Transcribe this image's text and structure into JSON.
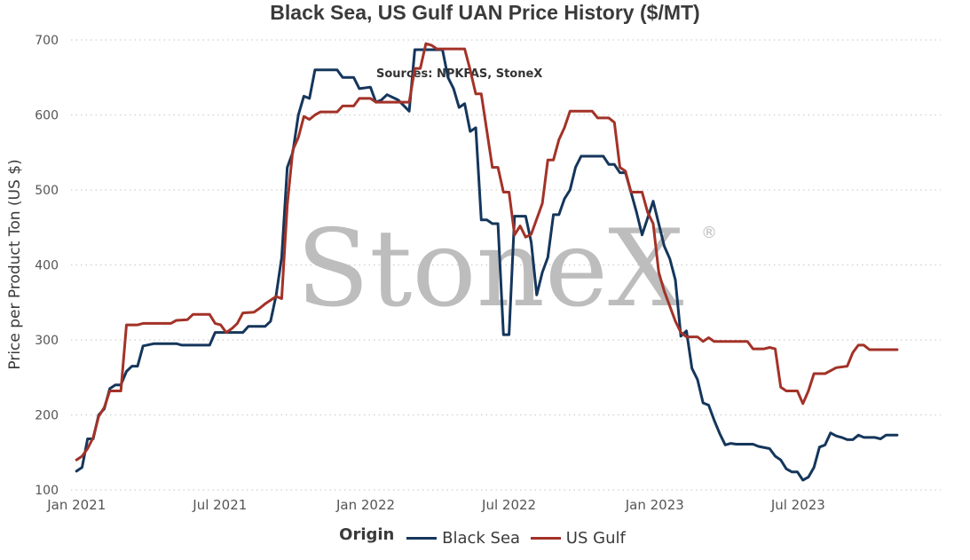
{
  "chart_data": {
    "type": "line",
    "title": "Black Sea, US Gulf UAN Price History ($/MT)",
    "ylabel": "Price per Product Ton (US $)",
    "xlabel": "",
    "ylim": [
      100,
      700
    ],
    "yticks": [
      100,
      200,
      300,
      400,
      500,
      600,
      700
    ],
    "xlim": [
      "2020-12-25",
      "2023-12-28"
    ],
    "xticks": [
      {
        "label": "Jan 2021",
        "date": "2021-01-01"
      },
      {
        "label": "Jul 2021",
        "date": "2021-07-01"
      },
      {
        "label": "Jan 2022",
        "date": "2022-01-01"
      },
      {
        "label": "Jul 2022",
        "date": "2022-07-01"
      },
      {
        "label": "Jan 2023",
        "date": "2023-01-01"
      },
      {
        "label": "Jul 2023",
        "date": "2023-07-01"
      }
    ],
    "grid": "horizontal-dotted",
    "annotation": "Sources: NPKFAS, StoneX",
    "watermark": "StoneX",
    "legend": {
      "title": "Origin",
      "placement": "bottom"
    },
    "series": [
      {
        "name": "Black Sea",
        "color": "#15365b",
        "points": [
          [
            "2021-01-01",
            125
          ],
          [
            "2021-01-08",
            130
          ],
          [
            "2021-01-15",
            168
          ],
          [
            "2021-01-22",
            168
          ],
          [
            "2021-01-29",
            200
          ],
          [
            "2021-02-05",
            208
          ],
          [
            "2021-02-12",
            235
          ],
          [
            "2021-02-19",
            240
          ],
          [
            "2021-02-26",
            240
          ],
          [
            "2021-03-05",
            258
          ],
          [
            "2021-03-12",
            265
          ],
          [
            "2021-03-19",
            265
          ],
          [
            "2021-03-26",
            292
          ],
          [
            "2021-04-09",
            295
          ],
          [
            "2021-05-07",
            295
          ],
          [
            "2021-05-14",
            293
          ],
          [
            "2021-06-18",
            293
          ],
          [
            "2021-06-25",
            310
          ],
          [
            "2021-07-30",
            310
          ],
          [
            "2021-08-06",
            318
          ],
          [
            "2021-08-27",
            318
          ],
          [
            "2021-09-03",
            325
          ],
          [
            "2021-09-10",
            360
          ],
          [
            "2021-09-17",
            410
          ],
          [
            "2021-09-24",
            530
          ],
          [
            "2021-10-01",
            550
          ],
          [
            "2021-10-08",
            600
          ],
          [
            "2021-10-15",
            625
          ],
          [
            "2021-10-22",
            622
          ],
          [
            "2021-10-29",
            660
          ],
          [
            "2021-11-26",
            660
          ],
          [
            "2021-12-03",
            650
          ],
          [
            "2021-12-17",
            650
          ],
          [
            "2021-12-24",
            635
          ],
          [
            "2022-01-07",
            637
          ],
          [
            "2022-01-14",
            617
          ],
          [
            "2022-01-21",
            620
          ],
          [
            "2022-01-28",
            627
          ],
          [
            "2022-02-11",
            620
          ],
          [
            "2022-02-25",
            605
          ],
          [
            "2022-03-04",
            687
          ],
          [
            "2022-04-08",
            687
          ],
          [
            "2022-04-15",
            650
          ],
          [
            "2022-04-22",
            635
          ],
          [
            "2022-04-29",
            610
          ],
          [
            "2022-05-06",
            615
          ],
          [
            "2022-05-13",
            578
          ],
          [
            "2022-05-20",
            583
          ],
          [
            "2022-05-27",
            460
          ],
          [
            "2022-06-03",
            460
          ],
          [
            "2022-06-10",
            455
          ],
          [
            "2022-06-17",
            455
          ],
          [
            "2022-06-24",
            307
          ],
          [
            "2022-07-01",
            307
          ],
          [
            "2022-07-08",
            465
          ],
          [
            "2022-07-22",
            465
          ],
          [
            "2022-07-29",
            430
          ],
          [
            "2022-08-05",
            360
          ],
          [
            "2022-08-12",
            390
          ],
          [
            "2022-08-19",
            410
          ],
          [
            "2022-08-26",
            467
          ],
          [
            "2022-09-02",
            467
          ],
          [
            "2022-09-09",
            488
          ],
          [
            "2022-09-16",
            500
          ],
          [
            "2022-09-23",
            530
          ],
          [
            "2022-09-30",
            545
          ],
          [
            "2022-10-28",
            545
          ],
          [
            "2022-11-04",
            534
          ],
          [
            "2022-11-11",
            534
          ],
          [
            "2022-11-18",
            523
          ],
          [
            "2022-11-25",
            523
          ],
          [
            "2022-12-02",
            497
          ],
          [
            "2022-12-09",
            470
          ],
          [
            "2022-12-16",
            440
          ],
          [
            "2022-12-30",
            485
          ],
          [
            "2023-01-13",
            425
          ],
          [
            "2023-01-20",
            408
          ],
          [
            "2023-01-27",
            380
          ],
          [
            "2023-02-03",
            305
          ],
          [
            "2023-02-10",
            312
          ],
          [
            "2023-02-17",
            262
          ],
          [
            "2023-02-24",
            247
          ],
          [
            "2023-03-03",
            216
          ],
          [
            "2023-03-10",
            213
          ],
          [
            "2023-03-17",
            193
          ],
          [
            "2023-03-24",
            175
          ],
          [
            "2023-03-31",
            160
          ],
          [
            "2023-04-07",
            162
          ],
          [
            "2023-04-14",
            161
          ],
          [
            "2023-05-05",
            161
          ],
          [
            "2023-05-12",
            158
          ],
          [
            "2023-05-26",
            155
          ],
          [
            "2023-06-02",
            145
          ],
          [
            "2023-06-09",
            140
          ],
          [
            "2023-06-16",
            128
          ],
          [
            "2023-06-23",
            124
          ],
          [
            "2023-06-30",
            124
          ],
          [
            "2023-07-07",
            113
          ],
          [
            "2023-07-14",
            117
          ],
          [
            "2023-07-21",
            130
          ],
          [
            "2023-07-28",
            157
          ],
          [
            "2023-08-04",
            160
          ],
          [
            "2023-08-11",
            176
          ],
          [
            "2023-08-18",
            172
          ],
          [
            "2023-08-25",
            170
          ],
          [
            "2023-09-01",
            167
          ],
          [
            "2023-09-08",
            167
          ],
          [
            "2023-09-15",
            173
          ],
          [
            "2023-09-22",
            170
          ],
          [
            "2023-10-06",
            170
          ],
          [
            "2023-10-13",
            168
          ],
          [
            "2023-10-20",
            173
          ],
          [
            "2023-11-03",
            173
          ]
        ]
      },
      {
        "name": "US Gulf",
        "color": "#a33228",
        "points": [
          [
            "2021-01-01",
            140
          ],
          [
            "2021-01-08",
            145
          ],
          [
            "2021-01-15",
            155
          ],
          [
            "2021-01-22",
            170
          ],
          [
            "2021-01-29",
            198
          ],
          [
            "2021-02-05",
            210
          ],
          [
            "2021-02-12",
            232
          ],
          [
            "2021-02-26",
            232
          ],
          [
            "2021-03-05",
            320
          ],
          [
            "2021-03-19",
            320
          ],
          [
            "2021-03-26",
            322
          ],
          [
            "2021-04-30",
            322
          ],
          [
            "2021-05-07",
            326
          ],
          [
            "2021-05-21",
            327
          ],
          [
            "2021-05-28",
            334
          ],
          [
            "2021-06-18",
            334
          ],
          [
            "2021-06-25",
            322
          ],
          [
            "2021-07-02",
            320
          ],
          [
            "2021-07-09",
            310
          ],
          [
            "2021-07-16",
            315
          ],
          [
            "2021-07-23",
            322
          ],
          [
            "2021-07-30",
            336
          ],
          [
            "2021-08-13",
            337
          ],
          [
            "2021-08-20",
            342
          ],
          [
            "2021-08-27",
            348
          ],
          [
            "2021-09-03",
            353
          ],
          [
            "2021-09-10",
            358
          ],
          [
            "2021-09-17",
            355
          ],
          [
            "2021-09-24",
            480
          ],
          [
            "2021-10-01",
            553
          ],
          [
            "2021-10-08",
            570
          ],
          [
            "2021-10-15",
            598
          ],
          [
            "2021-10-22",
            594
          ],
          [
            "2021-10-29",
            600
          ],
          [
            "2021-11-05",
            604
          ],
          [
            "2021-11-26",
            604
          ],
          [
            "2021-12-03",
            612
          ],
          [
            "2021-12-17",
            612
          ],
          [
            "2021-12-24",
            622
          ],
          [
            "2022-01-07",
            622
          ],
          [
            "2022-01-14",
            617
          ],
          [
            "2022-02-25",
            617
          ],
          [
            "2022-03-04",
            662
          ],
          [
            "2022-03-11",
            662
          ],
          [
            "2022-03-18",
            695
          ],
          [
            "2022-03-25",
            693
          ],
          [
            "2022-04-01",
            688
          ],
          [
            "2022-05-06",
            688
          ],
          [
            "2022-05-13",
            660
          ],
          [
            "2022-05-20",
            628
          ],
          [
            "2022-05-27",
            628
          ],
          [
            "2022-06-10",
            530
          ],
          [
            "2022-06-17",
            530
          ],
          [
            "2022-06-24",
            497
          ],
          [
            "2022-07-01",
            497
          ],
          [
            "2022-07-08",
            440
          ],
          [
            "2022-07-15",
            452
          ],
          [
            "2022-07-22",
            437
          ],
          [
            "2022-07-29",
            441
          ],
          [
            "2022-08-12",
            482
          ],
          [
            "2022-08-19",
            540
          ],
          [
            "2022-08-26",
            540
          ],
          [
            "2022-09-02",
            567
          ],
          [
            "2022-09-09",
            583
          ],
          [
            "2022-09-16",
            605
          ],
          [
            "2022-10-14",
            605
          ],
          [
            "2022-10-21",
            596
          ],
          [
            "2022-11-04",
            596
          ],
          [
            "2022-11-11",
            590
          ],
          [
            "2022-11-18",
            530
          ],
          [
            "2022-11-25",
            525
          ],
          [
            "2022-12-02",
            497
          ],
          [
            "2022-12-16",
            497
          ],
          [
            "2022-12-23",
            470
          ],
          [
            "2022-12-30",
            455
          ],
          [
            "2023-01-06",
            390
          ],
          [
            "2023-01-13",
            365
          ],
          [
            "2023-01-27",
            325
          ],
          [
            "2023-02-03",
            310
          ],
          [
            "2023-02-10",
            304
          ],
          [
            "2023-02-24",
            304
          ],
          [
            "2023-03-03",
            298
          ],
          [
            "2023-03-10",
            303
          ],
          [
            "2023-03-17",
            298
          ],
          [
            "2023-04-28",
            298
          ],
          [
            "2023-05-05",
            288
          ],
          [
            "2023-05-19",
            288
          ],
          [
            "2023-05-26",
            290
          ],
          [
            "2023-06-02",
            288
          ],
          [
            "2023-06-09",
            237
          ],
          [
            "2023-06-16",
            232
          ],
          [
            "2023-06-30",
            232
          ],
          [
            "2023-07-07",
            215
          ],
          [
            "2023-07-14",
            232
          ],
          [
            "2023-07-21",
            255
          ],
          [
            "2023-08-04",
            255
          ],
          [
            "2023-08-18",
            263
          ],
          [
            "2023-09-01",
            265
          ],
          [
            "2023-09-08",
            283
          ],
          [
            "2023-09-15",
            293
          ],
          [
            "2023-09-22",
            293
          ],
          [
            "2023-09-29",
            287
          ],
          [
            "2023-11-03",
            287
          ]
        ]
      }
    ]
  }
}
